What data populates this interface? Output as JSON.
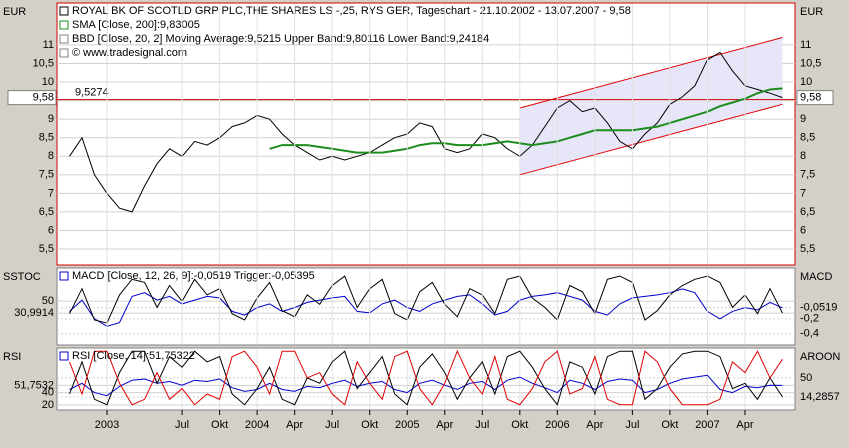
{
  "chart_data": [
    {
      "type": "line",
      "title": "ROYAL BK OF SCOTLD GRP PLC,THE SHARES LS -,25, RYS GER, Tageschart - 21.10.2002 - 13.07.2007 - 9,58",
      "notes": [
        "BBD [Close, 20, 2] Moving Average:9,5215 Upper Band:9,80116 Lower Band:9,24184",
        "© www.tradesignal.com"
      ],
      "ylabel": "EUR",
      "mirror_y": true,
      "grid": true,
      "xlim": [
        "2002-09",
        "2007-08"
      ],
      "ylim": [
        5.07,
        12.13
      ],
      "yticks": [
        {
          "value": 5.5,
          "label": "5,5"
        },
        6,
        {
          "value": 6.5,
          "label": "6,5"
        },
        7,
        {
          "value": 7.5,
          "label": "7,5"
        },
        8,
        {
          "value": 8.5,
          "label": "8,5"
        },
        9,
        {
          "value": 9.5,
          "label": "9,5"
        },
        10,
        {
          "value": 10.5,
          "label": "10,5"
        },
        11
      ],
      "current": {
        "value": 9.58,
        "label": "9,58"
      },
      "hline": {
        "value": 9.5274,
        "label": "9,5274",
        "color": "#d00000"
      },
      "channel_color": "#e00000",
      "channel_fill": "#e6e6f8",
      "channels": [
        {
          "x": [
            "2005-10",
            "2007-07"
          ],
          "values": [
            9.3,
            11.2
          ]
        },
        {
          "x": [
            "2005-10",
            "2007-07"
          ],
          "values": [
            7.5,
            9.4
          ]
        }
      ],
      "x": [
        "2002-10",
        "2002-11",
        "2002-12",
        "2003-01",
        "2003-02",
        "2003-03",
        "2003-04",
        "2003-05",
        "2003-06",
        "2003-07",
        "2003-08",
        "2003-09",
        "2003-10",
        "2003-11",
        "2003-12",
        "2004-01",
        "2004-02",
        "2004-03",
        "2004-04",
        "2004-05",
        "2004-06",
        "2004-07",
        "2004-08",
        "2004-09",
        "2004-10",
        "2004-11",
        "2004-12",
        "2005-01",
        "2005-02",
        "2005-03",
        "2005-04",
        "2005-05",
        "2005-06",
        "2005-07",
        "2005-08",
        "2005-09",
        "2005-10",
        "2005-11",
        "2005-12",
        "2006-01",
        "2006-02",
        "2006-03",
        "2006-04",
        "2006-05",
        "2006-06",
        "2006-07",
        "2006-08",
        "2006-09",
        "2006-10",
        "2006-11",
        "2006-12",
        "2007-01",
        "2007-02",
        "2007-03",
        "2007-04",
        "2007-05",
        "2007-06",
        "2007-07"
      ],
      "series": [
        {
          "color": "#000000",
          "width": 1,
          "values": [
            8.0,
            8.5,
            7.5,
            7.0,
            6.6,
            6.5,
            7.2,
            7.8,
            8.2,
            8.0,
            8.4,
            8.3,
            8.5,
            8.8,
            8.9,
            9.1,
            9.0,
            8.6,
            8.3,
            8.1,
            7.9,
            8.0,
            7.9,
            8.0,
            8.1,
            8.3,
            8.5,
            8.6,
            8.9,
            8.8,
            8.2,
            8.1,
            8.2,
            8.6,
            8.5,
            8.2,
            8.0,
            8.3,
            8.8,
            9.3,
            9.5,
            9.2,
            9.3,
            8.9,
            8.4,
            8.2,
            8.6,
            8.9,
            9.4,
            9.6,
            9.9,
            10.6,
            10.8,
            10.3,
            9.9,
            9.8,
            9.7,
            9.58
          ]
        },
        {
          "name": "SMA [Close, 200]:9,83005",
          "color": "#1e8c1e",
          "width": 2,
          "values": [
            null,
            null,
            null,
            null,
            null,
            null,
            null,
            null,
            null,
            null,
            null,
            null,
            null,
            null,
            null,
            null,
            8.2,
            8.3,
            8.3,
            8.3,
            8.25,
            8.2,
            8.15,
            8.1,
            8.1,
            8.1,
            8.15,
            8.2,
            8.3,
            8.35,
            8.35,
            8.3,
            8.3,
            8.3,
            8.35,
            8.4,
            8.35,
            8.3,
            8.35,
            8.4,
            8.5,
            8.6,
            8.7,
            8.7,
            8.7,
            8.7,
            8.75,
            8.8,
            8.9,
            9.0,
            9.1,
            9.2,
            9.35,
            9.45,
            9.55,
            9.7,
            9.8,
            9.83
          ]
        }
      ]
    },
    {
      "type": "line",
      "ylabel": "SSTOC",
      "y2label": "MACD",
      "grid": true,
      "xlim": [
        "2002-09",
        "2007-08"
      ],
      "ylim": [
        -20,
        103
      ],
      "y2lim": [
        -0.55,
        0.48
      ],
      "yticks": [
        50,
        {
          "value": 30.9914,
          "label": "30,9914"
        }
      ],
      "y2ticks": [
        {
          "value": -0.0519,
          "label": "-0,0519"
        },
        {
          "value": -0.2,
          "label": "-0,2"
        },
        {
          "value": -0.4,
          "label": "-0,4"
        }
      ],
      "x": [
        "2002-10",
        "2002-11",
        "2002-12",
        "2003-01",
        "2003-02",
        "2003-03",
        "2003-04",
        "2003-05",
        "2003-06",
        "2003-07",
        "2003-08",
        "2003-09",
        "2003-10",
        "2003-11",
        "2003-12",
        "2004-01",
        "2004-02",
        "2004-03",
        "2004-04",
        "2004-05",
        "2004-06",
        "2004-07",
        "2004-08",
        "2004-09",
        "2004-10",
        "2004-11",
        "2004-12",
        "2005-01",
        "2005-02",
        "2005-03",
        "2005-04",
        "2005-05",
        "2005-06",
        "2005-07",
        "2005-08",
        "2005-09",
        "2005-10",
        "2005-11",
        "2005-12",
        "2006-01",
        "2006-02",
        "2006-03",
        "2006-04",
        "2006-05",
        "2006-06",
        "2006-07",
        "2006-08",
        "2006-09",
        "2006-10",
        "2006-11",
        "2006-12",
        "2007-01",
        "2007-02",
        "2007-03",
        "2007-04",
        "2007-05",
        "2007-06",
        "2007-07"
      ],
      "series": [
        {
          "name": "MACD [Close, 12, 26, 9]:-0,0519 Trigger:-0,05395",
          "color": "#0000cc",
          "width": 1,
          "axis": "y2",
          "values": [
            -0.1,
            0.05,
            -0.2,
            -0.3,
            -0.25,
            0.1,
            0.15,
            0.05,
            0.1,
            0.0,
            0.05,
            0.1,
            0.08,
            -0.1,
            -0.15,
            -0.05,
            0.0,
            -0.1,
            -0.05,
            0.02,
            0.05,
            0.08,
            0.1,
            -0.1,
            -0.12,
            0.0,
            0.05,
            -0.05,
            -0.1,
            0.0,
            0.05,
            0.1,
            0.12,
            0.0,
            -0.15,
            -0.1,
            0.05,
            0.1,
            0.12,
            0.15,
            0.1,
            0.05,
            -0.1,
            -0.15,
            0.0,
            0.08,
            0.1,
            0.12,
            0.15,
            0.2,
            0.15,
            -0.1,
            -0.2,
            -0.1,
            -0.05,
            -0.08,
            0.02,
            -0.0519
          ]
        },
        {
          "color": "#000000",
          "width": 1,
          "values": [
            30,
            70,
            20,
            15,
            60,
            85,
            80,
            40,
            75,
            50,
            85,
            60,
            70,
            30,
            20,
            55,
            80,
            35,
            25,
            60,
            45,
            75,
            90,
            40,
            70,
            85,
            30,
            20,
            65,
            80,
            45,
            25,
            70,
            60,
            30,
            85,
            90,
            55,
            40,
            20,
            75,
            65,
            30,
            85,
            90,
            80,
            20,
            35,
            60,
            75,
            85,
            90,
            80,
            40,
            60,
            30,
            70,
            30.9914
          ]
        }
      ]
    },
    {
      "type": "line",
      "ylabel": "RSI",
      "y2label": "AROON",
      "grid": true,
      "xlim": [
        "2002-09",
        "2007-08"
      ],
      "ylim": [
        12,
        112
      ],
      "y2lim": [
        -10,
        106
      ],
      "yticks": [
        {
          "value": 51.7532,
          "label": "51,7532"
        },
        40,
        20
      ],
      "y2ticks": [
        50,
        {
          "value": 14.2857,
          "label": "14,2857"
        }
      ],
      "x": [
        "2002-10",
        "2002-11",
        "2002-12",
        "2003-01",
        "2003-02",
        "2003-03",
        "2003-04",
        "2003-05",
        "2003-06",
        "2003-07",
        "2003-08",
        "2003-09",
        "2003-10",
        "2003-11",
        "2003-12",
        "2004-01",
        "2004-02",
        "2004-03",
        "2004-04",
        "2004-05",
        "2004-06",
        "2004-07",
        "2004-08",
        "2004-09",
        "2004-10",
        "2004-11",
        "2004-12",
        "2005-01",
        "2005-02",
        "2005-03",
        "2005-04",
        "2005-05",
        "2005-06",
        "2005-07",
        "2005-08",
        "2005-09",
        "2005-10",
        "2005-11",
        "2005-12",
        "2006-01",
        "2006-02",
        "2006-03",
        "2006-04",
        "2006-05",
        "2006-06",
        "2006-07",
        "2006-08",
        "2006-09",
        "2006-10",
        "2006-11",
        "2006-12",
        "2007-01",
        "2007-02",
        "2007-03",
        "2007-04",
        "2007-05",
        "2007-06",
        "2007-07"
      ],
      "xticks": [
        {
          "value": "2003-01",
          "label": "2003"
        },
        {
          "value": "2003-07",
          "label": "Jul"
        },
        {
          "value": "2003-10",
          "label": "Okt"
        },
        {
          "value": "2004-01",
          "label": "2004"
        },
        {
          "value": "2004-04",
          "label": "Apr"
        },
        {
          "value": "2004-07",
          "label": "Jul"
        },
        {
          "value": "2004-10",
          "label": "Okt"
        },
        {
          "value": "2005-01",
          "label": "2005"
        },
        {
          "value": "2005-04",
          "label": "Apr"
        },
        {
          "value": "2005-07",
          "label": "Jul"
        },
        {
          "value": "2005-10",
          "label": "Okt"
        },
        {
          "value": "2006-01",
          "label": "2006"
        },
        {
          "value": "2006-04",
          "label": "Apr"
        },
        {
          "value": "2006-07",
          "label": "Jul"
        },
        {
          "value": "2006-10",
          "label": "Okt"
        },
        {
          "value": "2007-01",
          "label": "2007"
        },
        {
          "value": "2007-04",
          "label": "Apr"
        }
      ],
      "series": [
        {
          "name": "RSI [Close, 14]:51,75322",
          "color": "#0000cc",
          "width": 1,
          "values": [
            45,
            55,
            40,
            35,
            50,
            60,
            62,
            55,
            58,
            52,
            60,
            58,
            62,
            48,
            42,
            45,
            55,
            45,
            42,
            50,
            48,
            55,
            60,
            50,
            55,
            58,
            45,
            40,
            55,
            60,
            52,
            45,
            55,
            58,
            45,
            60,
            65,
            55,
            48,
            40,
            60,
            55,
            45,
            58,
            62,
            60,
            40,
            45,
            55,
            62,
            65,
            68,
            45,
            40,
            50,
            48,
            52,
            51.7532
          ]
        },
        {
          "color": "#000000",
          "width": 1,
          "axis": "y2",
          "values": [
            20,
            80,
            10,
            0,
            60,
            100,
            100,
            40,
            90,
            70,
            100,
            80,
            90,
            20,
            0,
            30,
            70,
            10,
            0,
            50,
            40,
            80,
            100,
            30,
            60,
            90,
            20,
            0,
            70,
            95,
            60,
            10,
            50,
            80,
            20,
            90,
            100,
            70,
            30,
            0,
            80,
            70,
            20,
            90,
            100,
            100,
            10,
            30,
            70,
            95,
            100,
            100,
            90,
            30,
            40,
            10,
            50,
            14.2857
          ]
        },
        {
          "color": "#e00000",
          "width": 1,
          "axis": "y2",
          "values": [
            80,
            20,
            100,
            100,
            40,
            0,
            10,
            60,
            10,
            30,
            0,
            20,
            10,
            90,
            100,
            70,
            20,
            100,
            100,
            50,
            60,
            20,
            0,
            80,
            40,
            10,
            90,
            100,
            30,
            0,
            40,
            100,
            50,
            20,
            90,
            10,
            0,
            30,
            80,
            100,
            20,
            30,
            90,
            10,
            0,
            0,
            100,
            80,
            30,
            0,
            0,
            0,
            10,
            80,
            60,
            100,
            50,
            85
          ]
        }
      ]
    }
  ]
}
